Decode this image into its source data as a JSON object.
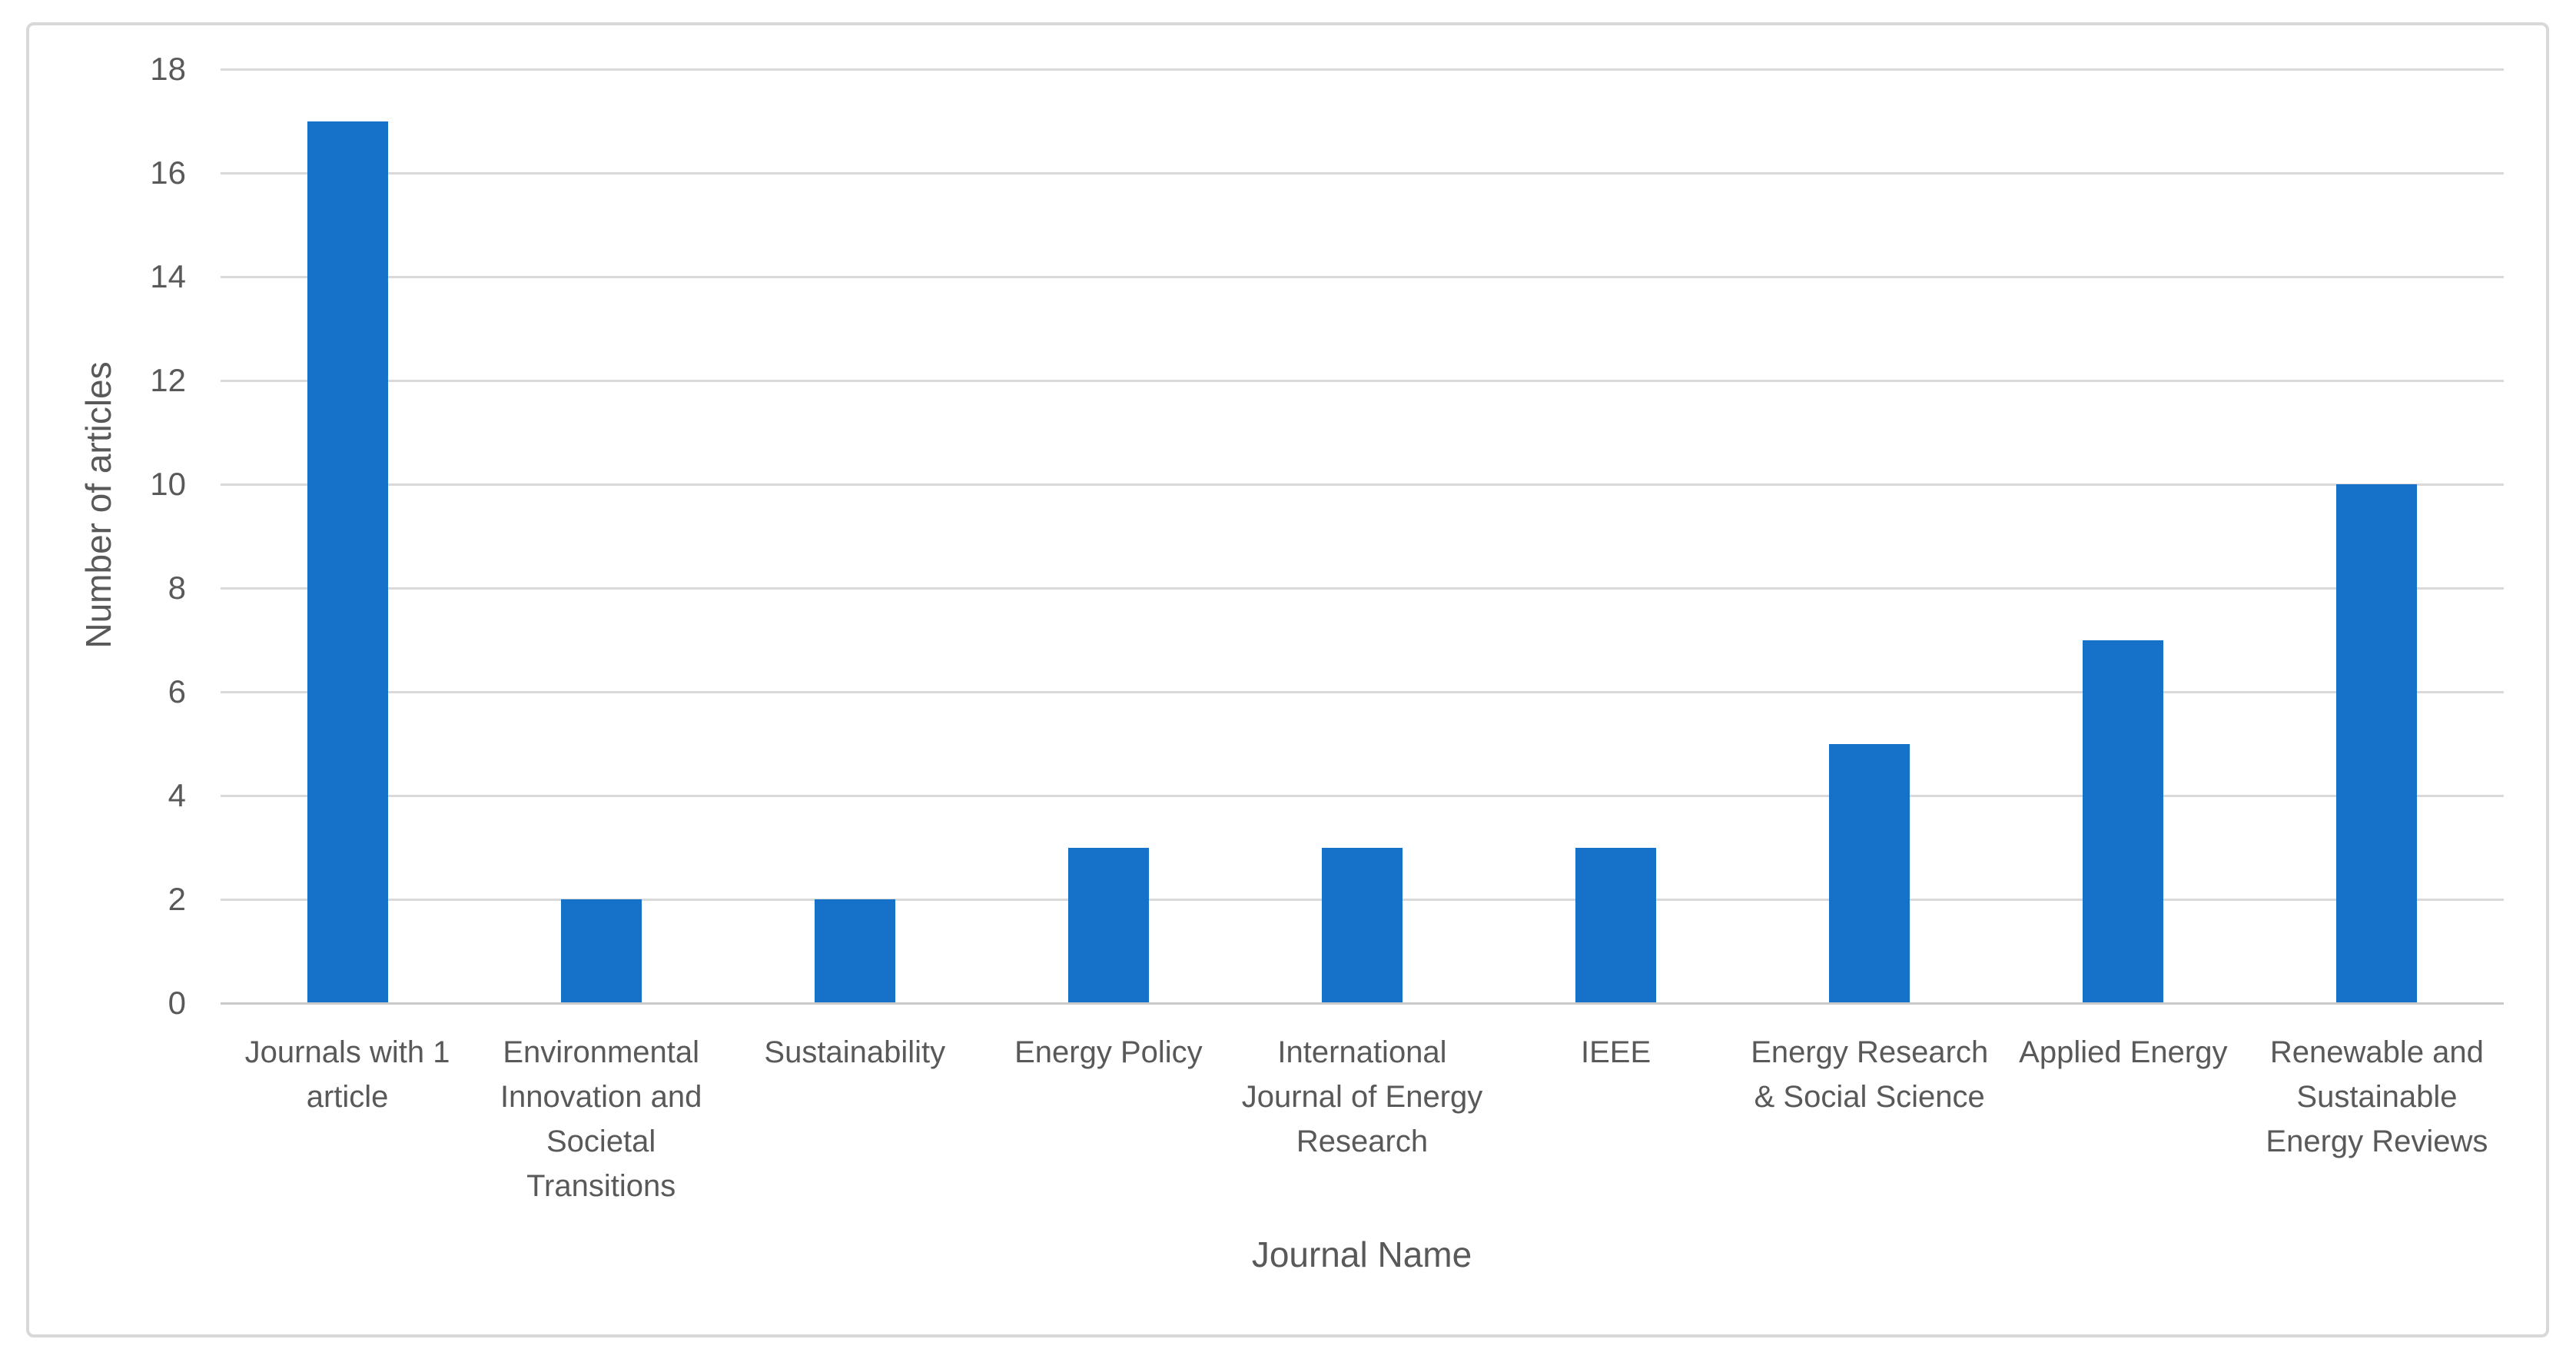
{
  "chart_data": {
    "type": "bar",
    "title": "",
    "categories": [
      "Journals with 1 article",
      "Environmental Innovation and Societal Transitions",
      "Sustainability",
      "Energy Policy",
      "International Journal of Energy Research",
      "IEEE",
      "Energy Research & Social Science",
      "Applied Energy",
      "Renewable and Sustainable Energy Reviews"
    ],
    "values": [
      17,
      2,
      2,
      3,
      3,
      3,
      5,
      7,
      10
    ],
    "xlabel": "Journal Name",
    "ylabel": "Number of articles",
    "ylim": [
      0,
      18
    ],
    "yticks": [
      0,
      2,
      4,
      6,
      8,
      10,
      12,
      14,
      16,
      18
    ],
    "grid": "horizontal",
    "legend_position": "none",
    "colors": {
      "bar": "#1572C8",
      "gridline": "#D9D9D9",
      "axis_line": "#C9C9C9",
      "label_text": "#595959",
      "frame_border": "#D8D8D8"
    }
  }
}
